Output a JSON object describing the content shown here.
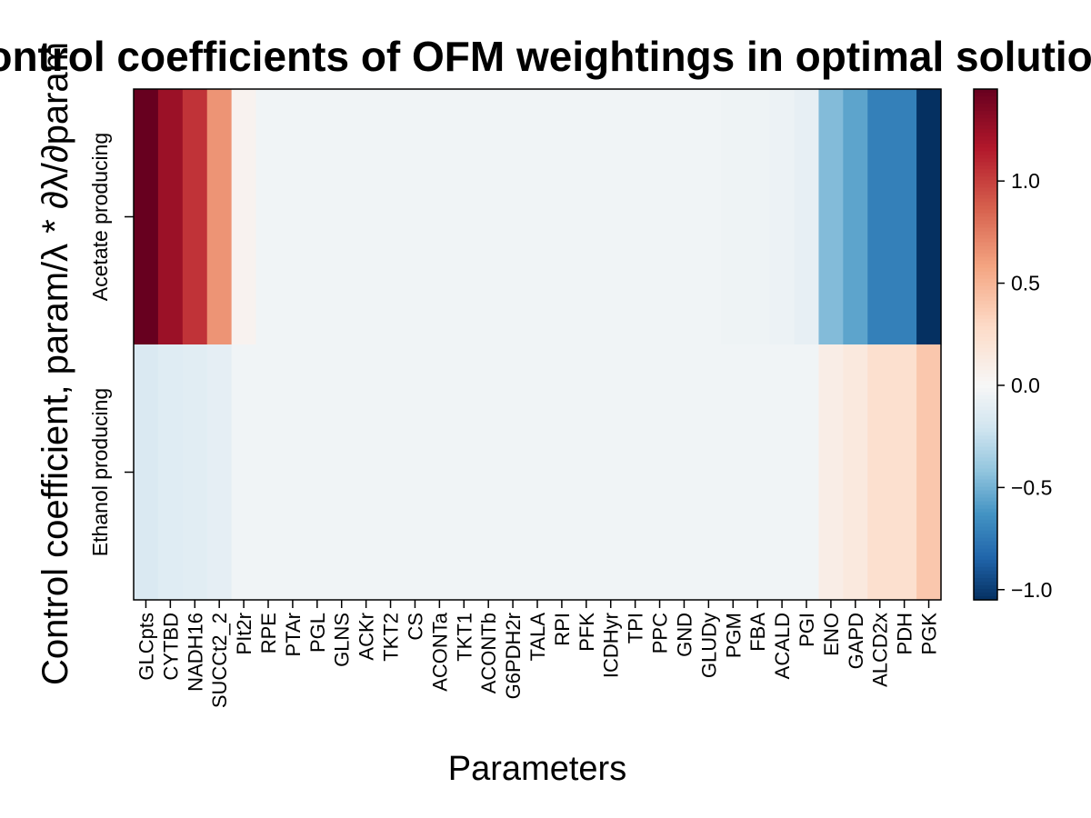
{
  "chart_data": {
    "type": "heatmap",
    "title": "Control coefficients of OFM weightings in optimal solution",
    "xlabel": "Parameters",
    "ylabel": "Control coefficient, param/λ * ∂λ/∂param",
    "columns": [
      "GLCpts",
      "CYTBD",
      "NADH16",
      "SUCCt2_2",
      "PIt2r",
      "RPE",
      "PTAr",
      "PGL",
      "GLNS",
      "ACKr",
      "TKT2",
      "CS",
      "ACONTa",
      "TKT1",
      "ACONTb",
      "G6PDH2r",
      "TALA",
      "RPI",
      "PFK",
      "ICDHyr",
      "TPI",
      "PPC",
      "GND",
      "GLUDy",
      "PGM",
      "FBA",
      "ACALD",
      "PGI",
      "ENO",
      "GAPD",
      "ALCD2x",
      "PDH",
      "PGK"
    ],
    "rows": [
      "Acetate producing",
      "Ethanol producing"
    ],
    "values": [
      [
        1.45,
        1.25,
        1.05,
        0.65,
        0.05,
        -0.04,
        -0.04,
        -0.04,
        -0.04,
        -0.04,
        -0.04,
        -0.04,
        -0.04,
        -0.04,
        -0.04,
        -0.04,
        -0.04,
        -0.04,
        -0.04,
        -0.04,
        -0.04,
        -0.04,
        -0.04,
        -0.04,
        -0.05,
        -0.05,
        -0.06,
        -0.09,
        -0.46,
        -0.56,
        -0.72,
        -0.72,
        -1.05
      ],
      [
        -0.16,
        -0.13,
        -0.12,
        -0.1,
        -0.04,
        -0.04,
        -0.04,
        -0.04,
        -0.04,
        -0.04,
        -0.04,
        -0.04,
        -0.04,
        -0.04,
        -0.04,
        -0.04,
        -0.04,
        -0.04,
        -0.04,
        -0.04,
        -0.04,
        -0.04,
        -0.04,
        -0.04,
        -0.04,
        -0.04,
        -0.04,
        -0.04,
        0.1,
        0.15,
        0.24,
        0.24,
        0.4
      ]
    ],
    "colorbar": {
      "cmap": "RdBu_r",
      "vmin": -1.05,
      "vmax": 1.45,
      "ticks": [
        -1.0,
        -0.5,
        0.0,
        0.5,
        1.0
      ],
      "tick_labels": [
        "−1.0",
        "−0.5",
        "0.0",
        "0.5",
        "1.0"
      ]
    }
  }
}
